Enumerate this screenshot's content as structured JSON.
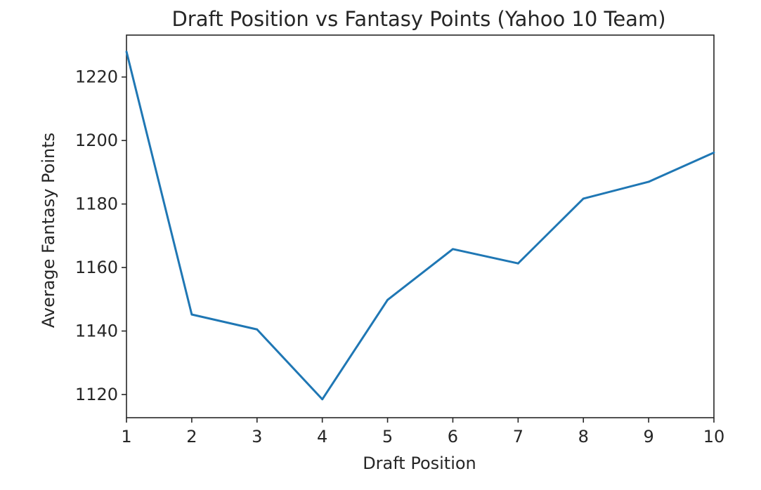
{
  "chart_data": {
    "type": "line",
    "title": "Draft Position vs Fantasy Points (Yahoo 10 Team)",
    "xlabel": "Draft Position",
    "ylabel": "Average Fantasy Points",
    "x": [
      1,
      2,
      3,
      4,
      5,
      6,
      7,
      8,
      9,
      10
    ],
    "series": [
      {
        "values": [
          1228.0,
          1145.2,
          1140.5,
          1118.5,
          1149.8,
          1165.8,
          1161.3,
          1181.7,
          1187.0,
          1196.2
        ],
        "color": "#1f77b4"
      }
    ],
    "xlim": [
      1,
      10
    ],
    "ylim": [
      1112.7,
      1233.2
    ],
    "xticks": [
      1,
      2,
      3,
      4,
      5,
      6,
      7,
      8,
      9,
      10
    ],
    "yticks": [
      1120,
      1140,
      1160,
      1180,
      1200,
      1220
    ],
    "grid": false,
    "legend": "none"
  }
}
